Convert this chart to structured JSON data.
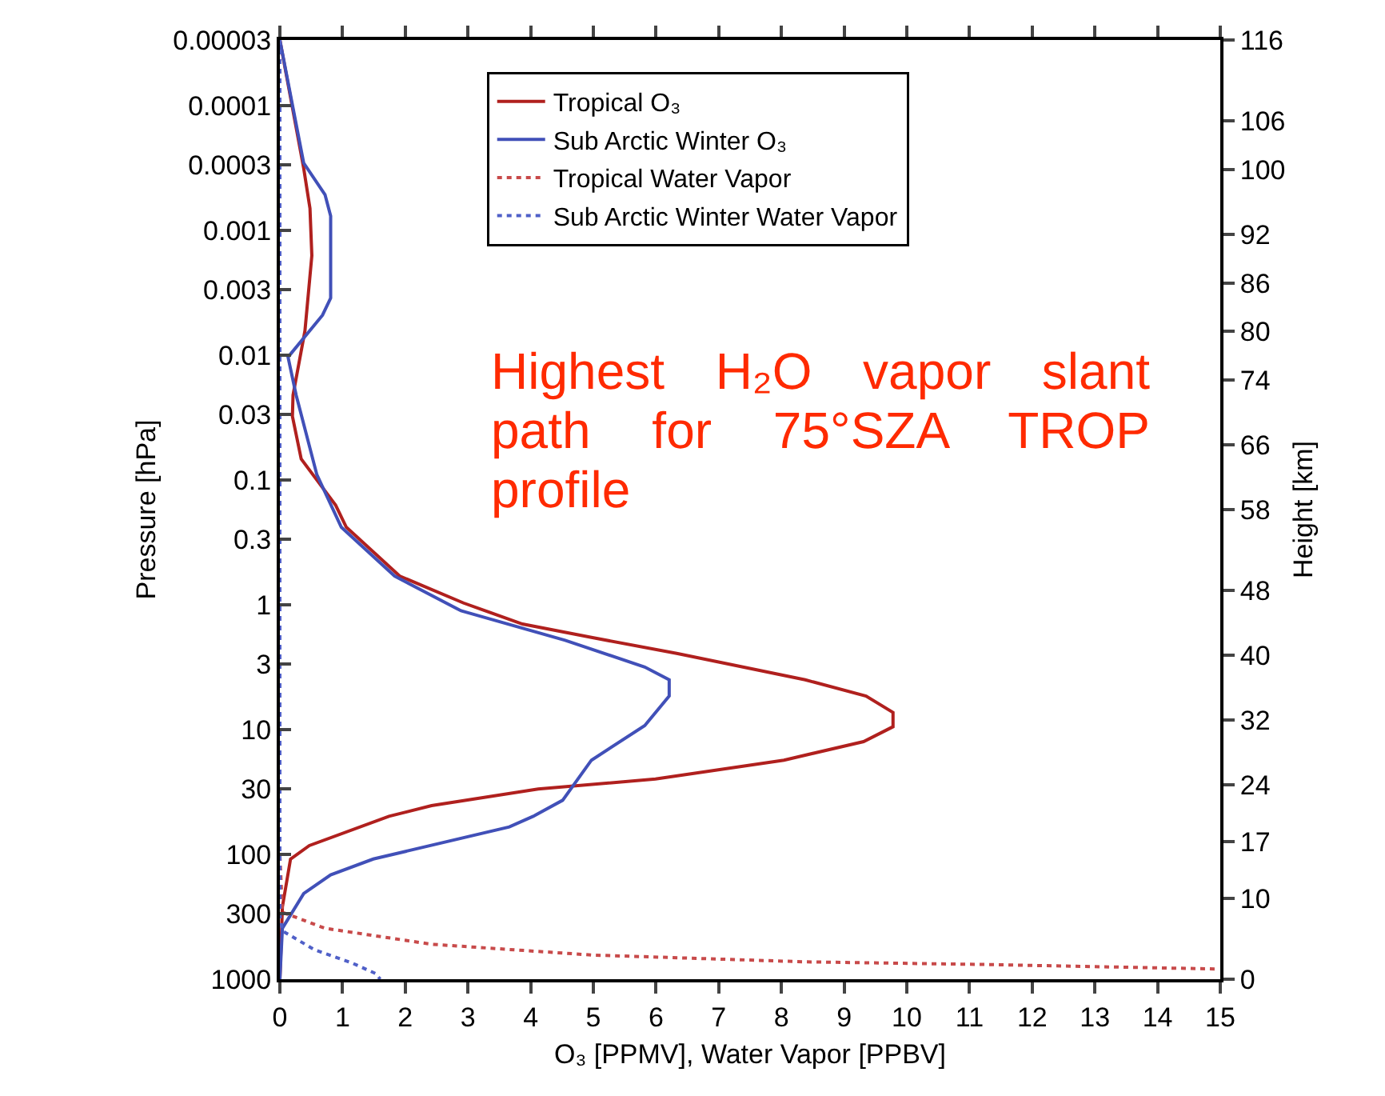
{
  "chart_data": {
    "type": "line",
    "xlabel": "O₃ [PPMV], Water Vapor [PPBV]",
    "ylabel": "Pressure [hPa]",
    "y2label": "Height [km]",
    "xlim": [
      0,
      15
    ],
    "xticks": [
      0,
      1,
      2,
      3,
      4,
      5,
      6,
      7,
      8,
      9,
      10,
      11,
      12,
      13,
      14,
      15
    ],
    "ylim": [
      1000,
      3e-05
    ],
    "yticks": [
      {
        "value": 3e-05,
        "label": "0.00003"
      },
      0.0001,
      0.0003,
      0.001,
      0.003,
      0.01,
      0.03,
      0.1,
      0.3,
      1,
      3,
      10,
      30,
      100,
      300,
      1000
    ],
    "y2lim": [
      0,
      116
    ],
    "y2ticks": [
      116,
      106,
      100,
      92,
      86,
      80,
      74,
      66,
      58,
      48,
      40,
      32,
      24,
      17,
      10,
      0
    ],
    "log": "y",
    "grid": false,
    "legend": "top",
    "marker": "none",
    "annotations": [
      "Highest H₂O vapor slant path for 75°SZA TROP profile"
    ],
    "series": [
      {
        "name": "Tropical O₃",
        "color": "#b0201e",
        "line_style": "solid",
        "x": [
          0,
          0.38,
          0.48,
          0.51,
          0.4,
          0.21,
          0.2,
          0.34,
          0.89,
          1.06,
          1.91,
          2.93,
          3.87,
          4.97,
          6.33,
          8.38,
          9.35,
          9.78,
          9.78,
          9.31,
          8.04,
          5.99,
          4.12,
          2.42,
          1.74,
          0.47,
          0.17,
          0.04,
          0
        ],
        "values": [
          3e-05,
          0.00032,
          0.00067,
          0.0016,
          0.0064,
          0.021,
          0.031,
          0.068,
          0.16,
          0.24,
          0.59,
          0.97,
          1.43,
          1.83,
          2.46,
          4.0,
          5.4,
          7.3,
          9.5,
          12.5,
          17.6,
          24.9,
          30,
          40.7,
          49.6,
          85,
          109,
          264,
          1000
        ]
      },
      {
        "name": "Sub Arctic Winter O₃",
        "color": "#4150b8",
        "line_style": "solid",
        "x": [
          0,
          0.38,
          0.72,
          0.81,
          0.81,
          0.68,
          0.13,
          0.26,
          0.59,
          0.98,
          1.83,
          2.89,
          4.55,
          5.82,
          6.21,
          6.21,
          5.82,
          4.97,
          4.51,
          4.04,
          3.66,
          1.49,
          0.81,
          0.38,
          0.04,
          0
        ],
        "values": [
          3e-05,
          0.00029,
          0.00052,
          0.00077,
          0.0035,
          0.0048,
          0.0104,
          0.021,
          0.091,
          0.24,
          0.59,
          1.12,
          1.93,
          3.16,
          4.0,
          5.4,
          9.3,
          17.6,
          36.9,
          49.6,
          60.3,
          109,
          146,
          206,
          391,
          1000
        ]
      },
      {
        "name": "Tropical Water Vapor",
        "color": "#c84a4a",
        "line_style": "dotted",
        "x": [
          0,
          0,
          0.04,
          0.72,
          2.42,
          4.97,
          8.38,
          11.27,
          14.92
        ],
        "values": [
          3e-05,
          100,
          291,
          391,
          525,
          640,
          726,
          763,
          828
        ]
      },
      {
        "name": "Sub Arctic Winter Water Vapor",
        "color": "#5060c8",
        "line_style": "dotted",
        "x": [
          0,
          0,
          0.04,
          0.55,
          1.15,
          1.53,
          1.6
        ],
        "values": [
          3e-05,
          300,
          410,
          580,
          741,
          902,
          1000
        ]
      }
    ]
  }
}
